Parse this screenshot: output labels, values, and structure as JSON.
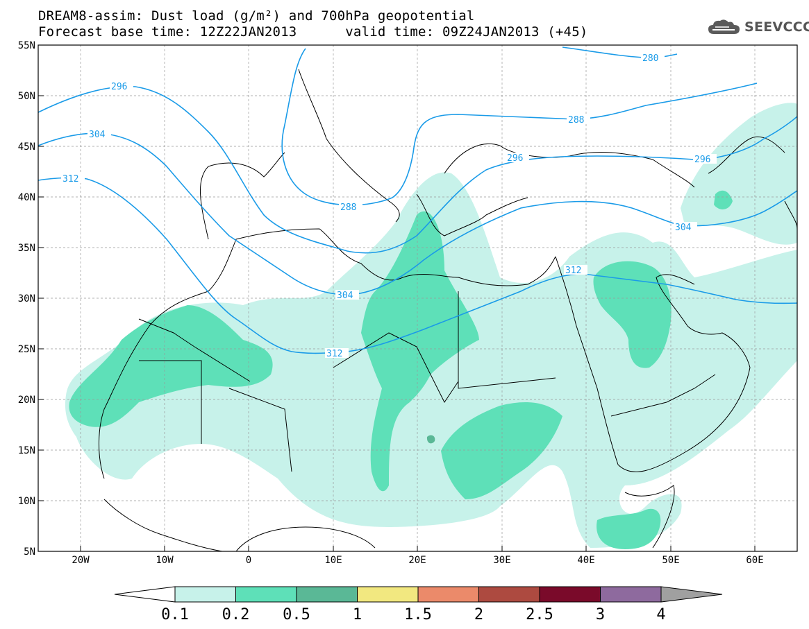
{
  "header": {
    "title_line_1": "DREAM8-assim: Dust load (g/m²) and 700hPa geopotential",
    "base_time": "Forecast base time: 12Z22JAN2013",
    "valid_time": "valid time: 09Z24JAN2013 (+45)",
    "logo_text": "SEEVCCC",
    "logo_icon": "cloud-icon"
  },
  "map": {
    "projection": "lat-lon",
    "lon_range": [
      -25,
      65
    ],
    "lat_range": [
      5,
      55
    ],
    "lon_ticks": [
      "20W",
      "10W",
      "0",
      "10E",
      "20E",
      "30E",
      "40E",
      "50E",
      "60E"
    ],
    "lat_ticks": [
      "55N",
      "50N",
      "45N",
      "40N",
      "35N",
      "30N",
      "25N",
      "20N",
      "15N",
      "10N",
      "5N"
    ],
    "contour_color": "#1a9be8",
    "contour_labels": [
      "280",
      "288",
      "288",
      "296",
      "296",
      "296",
      "304",
      "304",
      "304",
      "312",
      "312",
      "312"
    ]
  },
  "legend": {
    "labels": [
      "0.1",
      "0.2",
      "0.5",
      "1",
      "1.5",
      "2",
      "2.5",
      "3",
      "4"
    ],
    "colors": [
      "#ffffff",
      "#c7f2ea",
      "#5ee0b8",
      "#5ab896",
      "#f2e880",
      "#eb8a6a",
      "#ad4a40",
      "#7a0a2a",
      "#8e6a9e",
      "#a0a0a0"
    ]
  },
  "chart_data": {
    "type": "heatmap",
    "variable": "Dust load (g/m²)",
    "overlay": "700hPa geopotential",
    "levels": [
      0.1,
      0.2,
      0.5,
      1,
      1.5,
      2,
      2.5,
      3,
      4
    ],
    "geopotential_isolines_dam": [
      280,
      288,
      296,
      304,
      312
    ],
    "xlim": [
      -25,
      65
    ],
    "ylim": [
      5,
      55
    ]
  }
}
